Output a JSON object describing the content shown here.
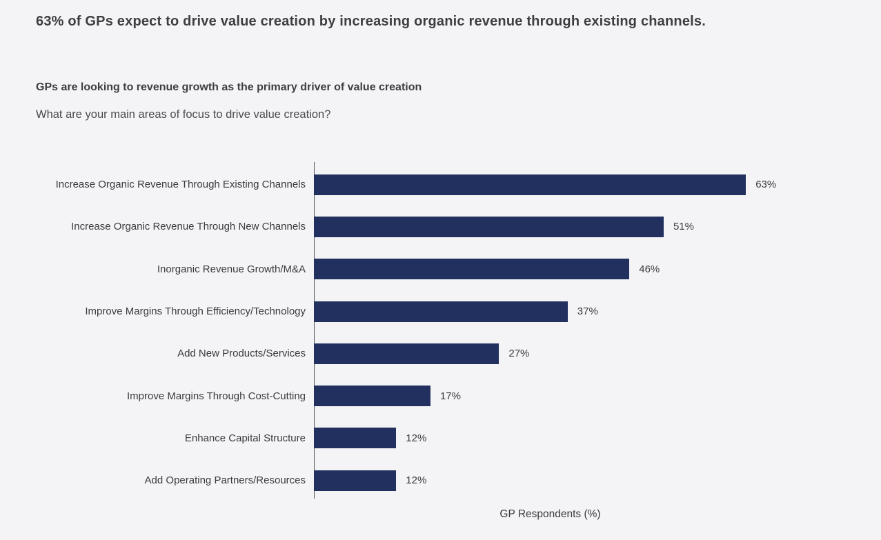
{
  "page": {
    "title": "63% of GPs expect to drive value creation by increasing organic revenue through existing channels."
  },
  "section": {
    "heading": "GPs are looking to revenue growth as the primary driver of value creation",
    "question": "What are your main areas of focus to drive value creation?"
  },
  "chart_data": {
    "type": "bar",
    "orientation": "horizontal",
    "title": "GPs are looking to revenue growth as the primary driver of value creation",
    "xlabel": "GP Respondents (%)",
    "ylabel": "",
    "xlim": [
      0,
      70
    ],
    "grid": false,
    "legend": false,
    "bar_color": "#21305e",
    "categories": [
      "Increase Organic Revenue Through Existing Channels",
      "Increase Organic Revenue Through New Channels",
      "Inorganic Revenue Growth/M&A",
      "Improve Margins Through Efficiency/Technology",
      "Add New Products/Services",
      "Improve Margins Through Cost-Cutting",
      "Enhance Capital Structure",
      "Add Operating Partners/Resources"
    ],
    "values": [
      63,
      51,
      46,
      37,
      27,
      17,
      12,
      12
    ],
    "data_labels": [
      "63%",
      "51%",
      "46%",
      "37%",
      "27%",
      "17%",
      "12%",
      "12%"
    ]
  },
  "colors": {
    "background": "#f4f4f6",
    "bar": "#21305e",
    "heading_text": "#3e3e40",
    "body_text": "#4a4a4d",
    "axis_line": "#58585c"
  }
}
